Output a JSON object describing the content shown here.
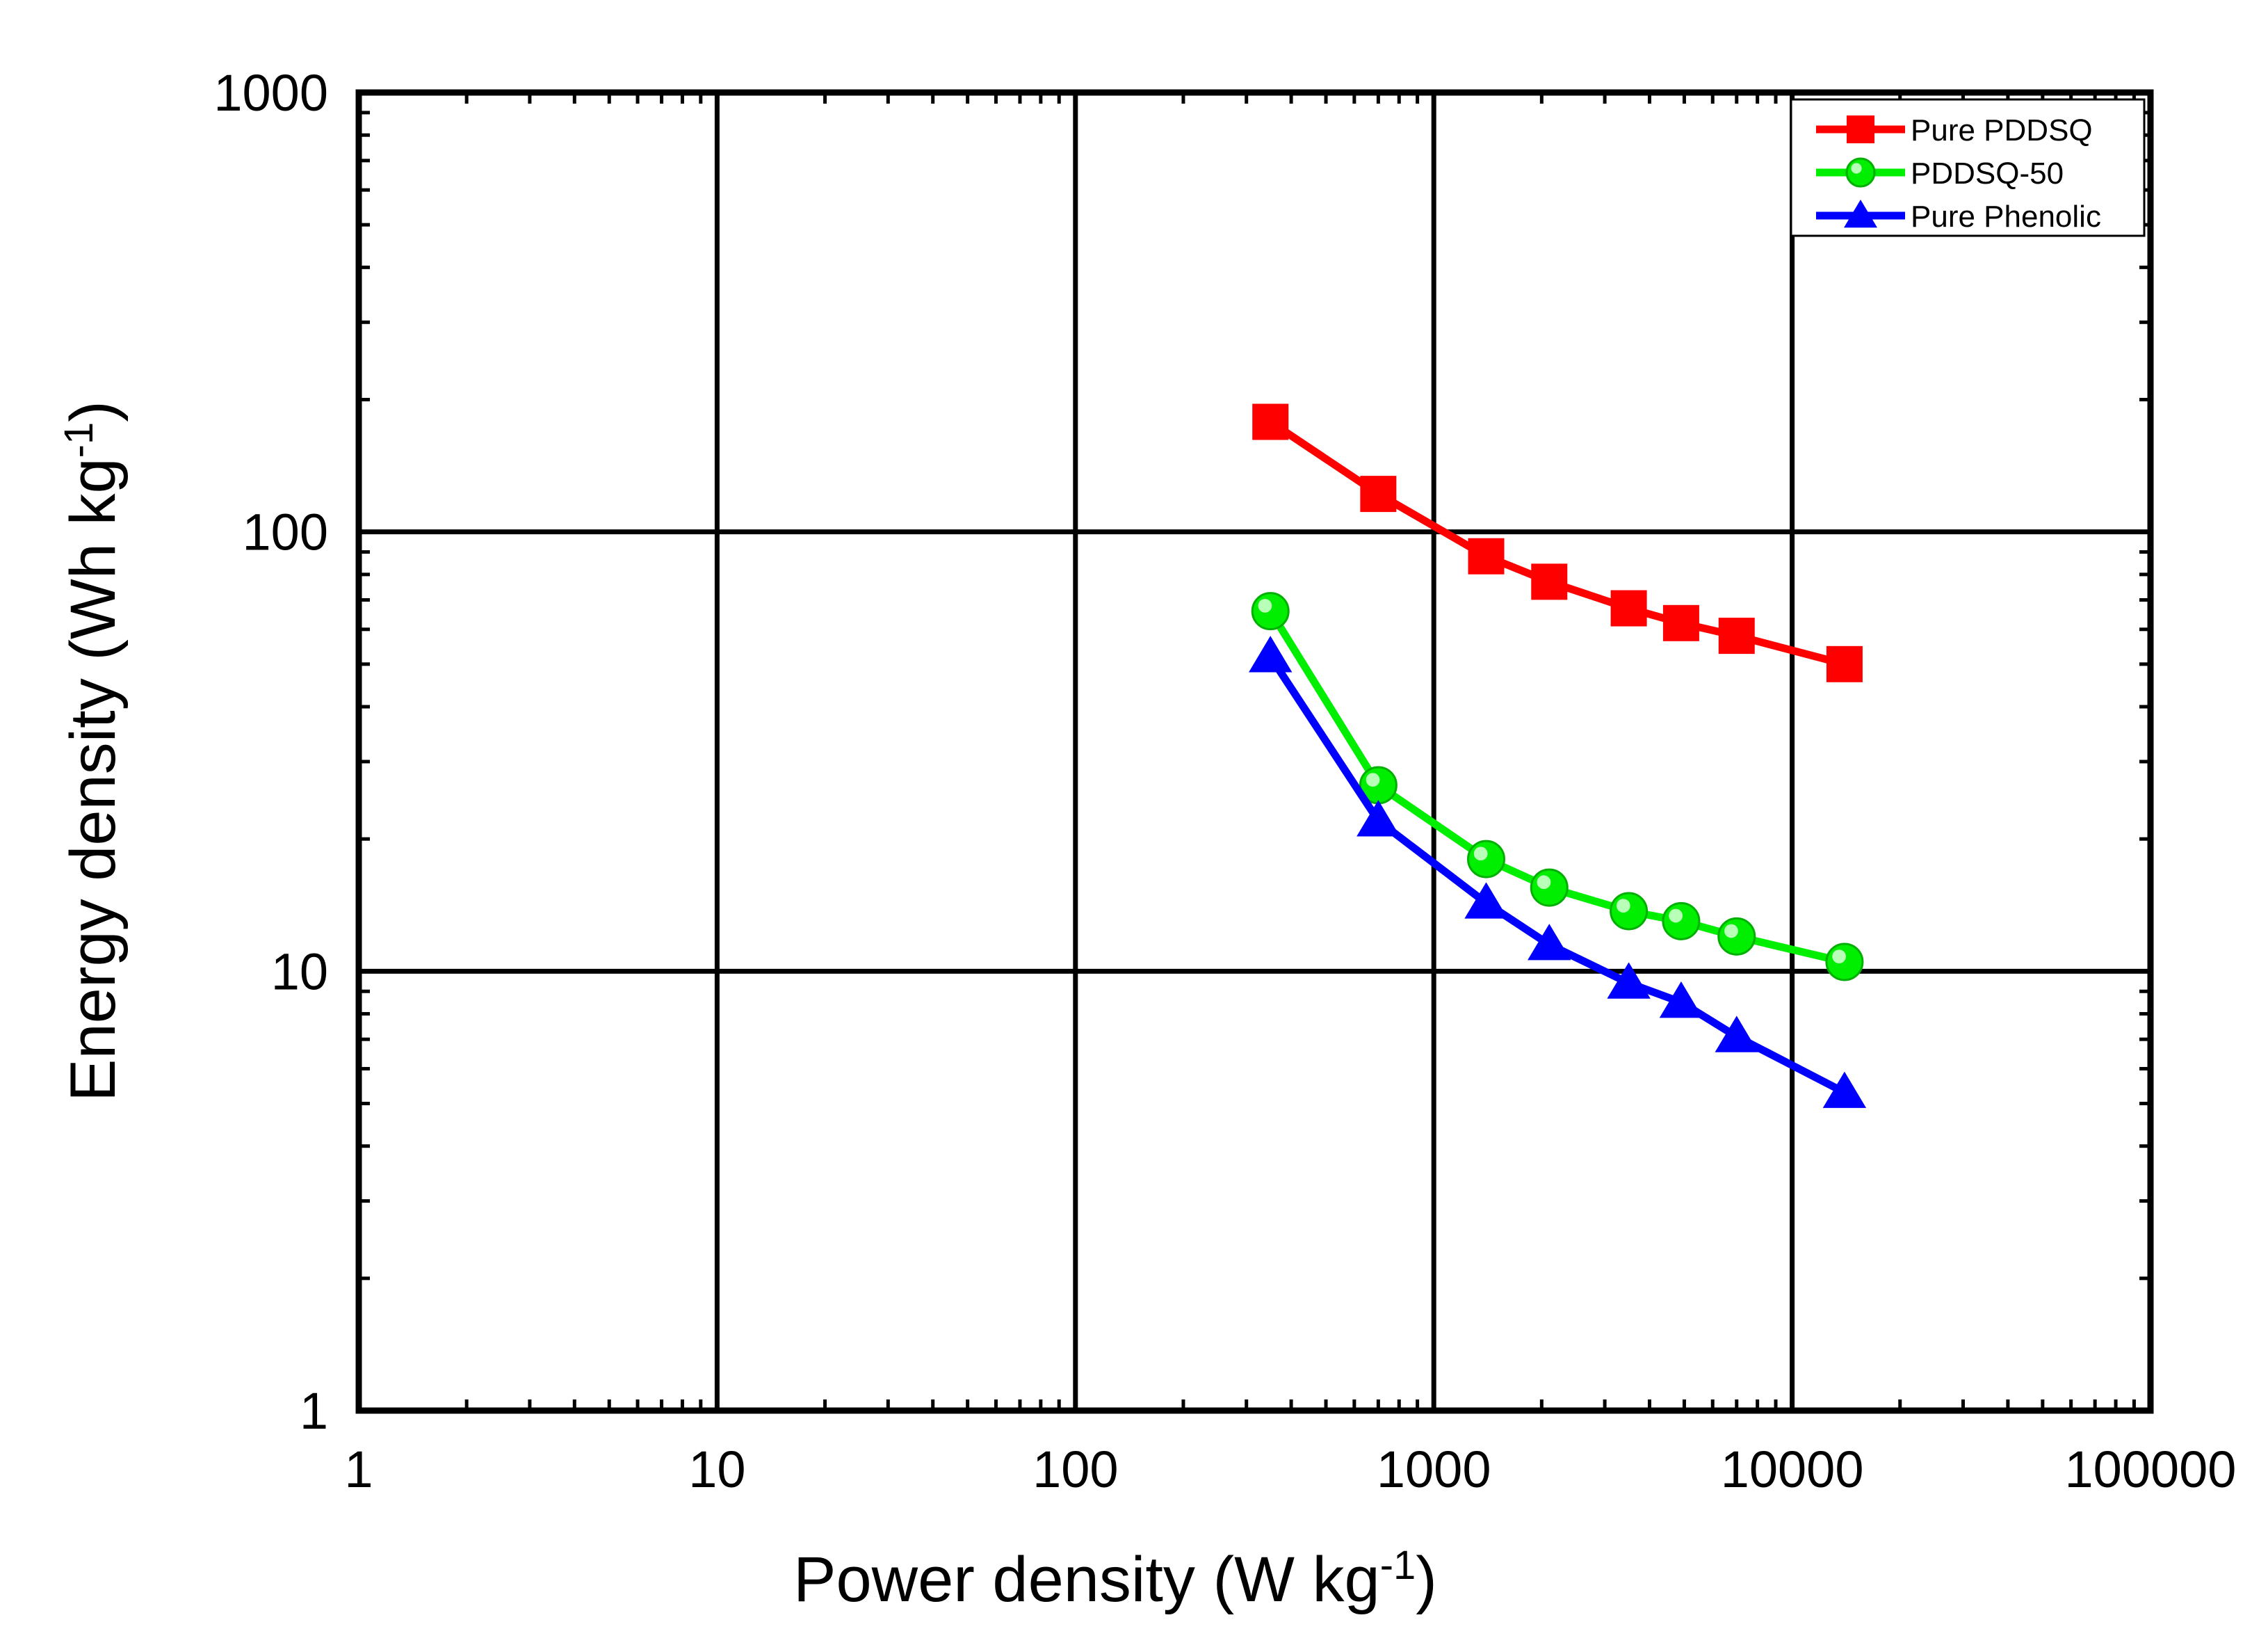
{
  "chart_data": {
    "type": "line",
    "x_scale": "log",
    "y_scale": "log",
    "xlim": [
      1,
      100000
    ],
    "ylim": [
      1,
      1000
    ],
    "grid": true,
    "legend_position": "top-right",
    "xlabel": {
      "main": "Power density (W kg",
      "sup": "-1",
      "end": ")"
    },
    "ylabel": {
      "main": "Energy density (Wh kg",
      "sup": "-1",
      "end": ")"
    },
    "x_ticks": [
      1,
      10,
      100,
      1000,
      10000,
      100000
    ],
    "x_tick_labels": [
      "1",
      "10",
      "100",
      "1000",
      "10000",
      "100000"
    ],
    "y_ticks": [
      1,
      10,
      100,
      1000
    ],
    "y_tick_labels": [
      "1",
      "10",
      "100",
      "1000"
    ],
    "series": [
      {
        "name": "Pure PDDSQ",
        "color": "#ff0000",
        "marker": "square",
        "x": [
          350,
          700,
          1400,
          2100,
          3500,
          4900,
          7000,
          14000
        ],
        "y": [
          178,
          122,
          88,
          77,
          67,
          62,
          58,
          50
        ]
      },
      {
        "name": "PDDSQ-50",
        "color": "#00ee00",
        "marker": "circle",
        "x": [
          350,
          700,
          1400,
          2100,
          3500,
          4900,
          7000,
          14000
        ],
        "y": [
          66,
          26.5,
          18,
          15.5,
          13.7,
          13,
          12,
          10.5
        ]
      },
      {
        "name": "Pure Phenolic",
        "color": "#0000ff",
        "marker": "triangle",
        "x": [
          350,
          700,
          1400,
          2100,
          3500,
          4900,
          7000,
          14000
        ],
        "y": [
          52,
          22,
          14.3,
          11.5,
          9.4,
          8.5,
          7.1,
          5.3
        ]
      }
    ]
  }
}
